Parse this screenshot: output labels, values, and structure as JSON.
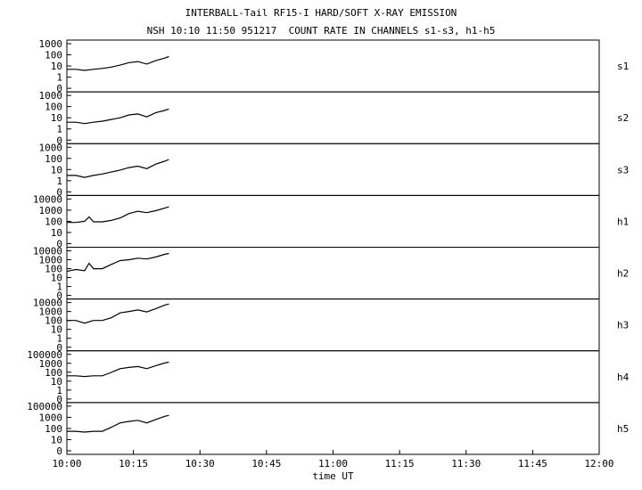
{
  "title": "INTERBALL-Tail RF15-I HARD/SOFT X-RAY EMISSION",
  "subtitle": "NSH 10:10 11:50 951217  COUNT RATE IN CHANNELS s1-s3, h1-h5",
  "chart_data": {
    "type": "line",
    "xlabel": "time UT",
    "x_ticks": [
      "10:00",
      "10:15",
      "10:30",
      "10:45",
      "11:00",
      "11:15",
      "11:30",
      "11:45",
      "12:00"
    ],
    "xlim": [
      "10:00",
      "12:00"
    ],
    "y_scale": "log",
    "grid": false,
    "panels": [
      {
        "name": "s1",
        "y_ticks": [
          "1000",
          "100",
          "10",
          "1",
          "0"
        ],
        "series": [
          {
            "x": "10:00",
            "y": 5
          },
          {
            "x": "10:02",
            "y": 5
          },
          {
            "x": "10:04",
            "y": 4
          },
          {
            "x": "10:06",
            "y": 5
          },
          {
            "x": "10:08",
            "y": 6
          },
          {
            "x": "10:10",
            "y": 8
          },
          {
            "x": "10:12",
            "y": 12
          },
          {
            "x": "10:14",
            "y": 20
          },
          {
            "x": "10:16",
            "y": 25
          },
          {
            "x": "10:18",
            "y": 15
          },
          {
            "x": "10:20",
            "y": 30
          },
          {
            "x": "10:22",
            "y": 50
          },
          {
            "x": "10:23",
            "y": 70
          }
        ]
      },
      {
        "name": "s2",
        "y_ticks": [
          "1000",
          "100",
          "10",
          "1",
          "0"
        ],
        "series": [
          {
            "x": "10:00",
            "y": 4
          },
          {
            "x": "10:02",
            "y": 4
          },
          {
            "x": "10:04",
            "y": 3
          },
          {
            "x": "10:06",
            "y": 4
          },
          {
            "x": "10:08",
            "y": 5
          },
          {
            "x": "10:10",
            "y": 7
          },
          {
            "x": "10:12",
            "y": 10
          },
          {
            "x": "10:14",
            "y": 18
          },
          {
            "x": "10:16",
            "y": 22
          },
          {
            "x": "10:18",
            "y": 12
          },
          {
            "x": "10:20",
            "y": 28
          },
          {
            "x": "10:22",
            "y": 45
          },
          {
            "x": "10:23",
            "y": 60
          }
        ]
      },
      {
        "name": "s3",
        "y_ticks": [
          "1000",
          "100",
          "10",
          "1",
          "0"
        ],
        "series": [
          {
            "x": "10:00",
            "y": 3
          },
          {
            "x": "10:02",
            "y": 3
          },
          {
            "x": "10:04",
            "y": 2
          },
          {
            "x": "10:06",
            "y": 3
          },
          {
            "x": "10:08",
            "y": 4
          },
          {
            "x": "10:10",
            "y": 6
          },
          {
            "x": "10:12",
            "y": 9
          },
          {
            "x": "10:14",
            "y": 15
          },
          {
            "x": "10:16",
            "y": 20
          },
          {
            "x": "10:18",
            "y": 12
          },
          {
            "x": "10:20",
            "y": 30
          },
          {
            "x": "10:22",
            "y": 55
          },
          {
            "x": "10:23",
            "y": 80
          }
        ]
      },
      {
        "name": "h1",
        "y_ticks": [
          "10000",
          "1000",
          "100",
          "10",
          "0"
        ],
        "series": [
          {
            "x": "10:00",
            "y": 80
          },
          {
            "x": "10:02",
            "y": 80
          },
          {
            "x": "10:04",
            "y": 100
          },
          {
            "x": "10:05",
            "y": 250
          },
          {
            "x": "10:06",
            "y": 90
          },
          {
            "x": "10:08",
            "y": 90
          },
          {
            "x": "10:10",
            "y": 120
          },
          {
            "x": "10:12",
            "y": 200
          },
          {
            "x": "10:14",
            "y": 500
          },
          {
            "x": "10:16",
            "y": 800
          },
          {
            "x": "10:18",
            "y": 600
          },
          {
            "x": "10:20",
            "y": 900
          },
          {
            "x": "10:22",
            "y": 1500
          },
          {
            "x": "10:23",
            "y": 2000
          }
        ]
      },
      {
        "name": "h2",
        "y_ticks": [
          "10000",
          "1000",
          "100",
          "10",
          "1",
          "0"
        ],
        "series": [
          {
            "x": "10:00",
            "y": 50
          },
          {
            "x": "10:02",
            "y": 80
          },
          {
            "x": "10:04",
            "y": 60
          },
          {
            "x": "10:05",
            "y": 400
          },
          {
            "x": "10:06",
            "y": 100
          },
          {
            "x": "10:08",
            "y": 100
          },
          {
            "x": "10:10",
            "y": 300
          },
          {
            "x": "10:12",
            "y": 800
          },
          {
            "x": "10:14",
            "y": 1000
          },
          {
            "x": "10:16",
            "y": 1500
          },
          {
            "x": "10:18",
            "y": 1200
          },
          {
            "x": "10:20",
            "y": 2000
          },
          {
            "x": "10:22",
            "y": 4000
          },
          {
            "x": "10:23",
            "y": 5000
          }
        ]
      },
      {
        "name": "h3",
        "y_ticks": [
          "10000",
          "1000",
          "100",
          "10",
          "1",
          "0"
        ],
        "series": [
          {
            "x": "10:00",
            "y": 100
          },
          {
            "x": "10:02",
            "y": 100
          },
          {
            "x": "10:04",
            "y": 50
          },
          {
            "x": "10:06",
            "y": 100
          },
          {
            "x": "10:08",
            "y": 100
          },
          {
            "x": "10:10",
            "y": 200
          },
          {
            "x": "10:12",
            "y": 700
          },
          {
            "x": "10:14",
            "y": 1000
          },
          {
            "x": "10:16",
            "y": 1500
          },
          {
            "x": "10:18",
            "y": 900
          },
          {
            "x": "10:20",
            "y": 2000
          },
          {
            "x": "10:22",
            "y": 5000
          },
          {
            "x": "10:23",
            "y": 7000
          }
        ]
      },
      {
        "name": "h4",
        "y_ticks": [
          "100000",
          "1000",
          "100",
          "10",
          "1",
          "0"
        ],
        "series": [
          {
            "x": "10:00",
            "y": 100
          },
          {
            "x": "10:02",
            "y": 100
          },
          {
            "x": "10:04",
            "y": 80
          },
          {
            "x": "10:06",
            "y": 100
          },
          {
            "x": "10:08",
            "y": 100
          },
          {
            "x": "10:10",
            "y": 300
          },
          {
            "x": "10:12",
            "y": 1000
          },
          {
            "x": "10:14",
            "y": 1500
          },
          {
            "x": "10:16",
            "y": 2000
          },
          {
            "x": "10:18",
            "y": 1000
          },
          {
            "x": "10:20",
            "y": 2500
          },
          {
            "x": "10:22",
            "y": 6000
          },
          {
            "x": "10:23",
            "y": 8000
          }
        ]
      },
      {
        "name": "h5",
        "y_ticks": [
          "100000",
          "1000",
          "100",
          "10",
          "0"
        ],
        "series": [
          {
            "x": "10:00",
            "y": 100
          },
          {
            "x": "10:02",
            "y": 100
          },
          {
            "x": "10:04",
            "y": 80
          },
          {
            "x": "10:06",
            "y": 100
          },
          {
            "x": "10:08",
            "y": 100
          },
          {
            "x": "10:10",
            "y": 300
          },
          {
            "x": "10:12",
            "y": 1000
          },
          {
            "x": "10:14",
            "y": 1500
          },
          {
            "x": "10:16",
            "y": 2000
          },
          {
            "x": "10:18",
            "y": 1000
          },
          {
            "x": "10:20",
            "y": 2500
          },
          {
            "x": "10:22",
            "y": 6000
          },
          {
            "x": "10:23",
            "y": 8000
          }
        ]
      }
    ]
  }
}
